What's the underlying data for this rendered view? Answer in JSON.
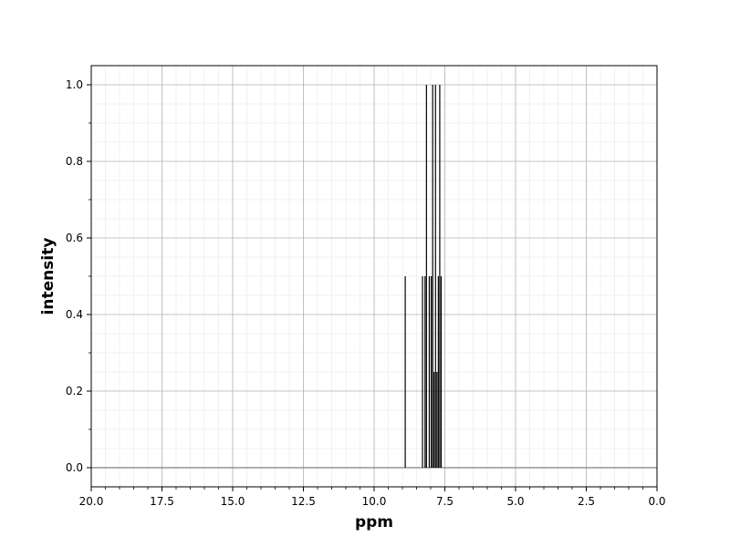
{
  "chart_data": {
    "type": "bar",
    "title": "",
    "xlabel": "ppm",
    "ylabel": "intensity",
    "xlim": [
      20.0,
      0.0
    ],
    "ylim": [
      -0.05,
      1.05
    ],
    "x_inverted": true,
    "xticks": [
      20.0,
      17.5,
      15.0,
      12.5,
      10.0,
      7.5,
      5.0,
      2.5,
      0.0
    ],
    "xtick_labels": [
      "20.0",
      "17.5",
      "15.0",
      "12.5",
      "10.0",
      "7.5",
      "5.0",
      "2.5",
      "0.0"
    ],
    "yticks": [
      0.0,
      0.2,
      0.4,
      0.6,
      0.8,
      1.0
    ],
    "ytick_labels": [
      "0.0",
      "0.2",
      "0.4",
      "0.6",
      "0.8",
      "1.0"
    ],
    "grid": "major and minor",
    "baseline": 0.0,
    "peaks": [
      {
        "ppm": 8.9,
        "intensity": 0.5
      },
      {
        "ppm": 8.29,
        "intensity": 0.5
      },
      {
        "ppm": 8.2,
        "intensity": 0.5
      },
      {
        "ppm": 8.15,
        "intensity": 1.0
      },
      {
        "ppm": 8.05,
        "intensity": 0.5
      },
      {
        "ppm": 7.98,
        "intensity": 0.5
      },
      {
        "ppm": 7.93,
        "intensity": 1.0
      },
      {
        "ppm": 7.88,
        "intensity": 0.25
      },
      {
        "ppm": 7.83,
        "intensity": 1.0
      },
      {
        "ppm": 7.78,
        "intensity": 0.25
      },
      {
        "ppm": 7.73,
        "intensity": 0.5
      },
      {
        "ppm": 7.68,
        "intensity": 1.0
      },
      {
        "ppm": 7.63,
        "intensity": 0.5
      }
    ],
    "colors": {
      "peak": "#000000",
      "baseline": "#808080",
      "grid_major": "#b0b0b0",
      "grid_minor": "#e6e6e6",
      "axes": "#000000"
    }
  }
}
